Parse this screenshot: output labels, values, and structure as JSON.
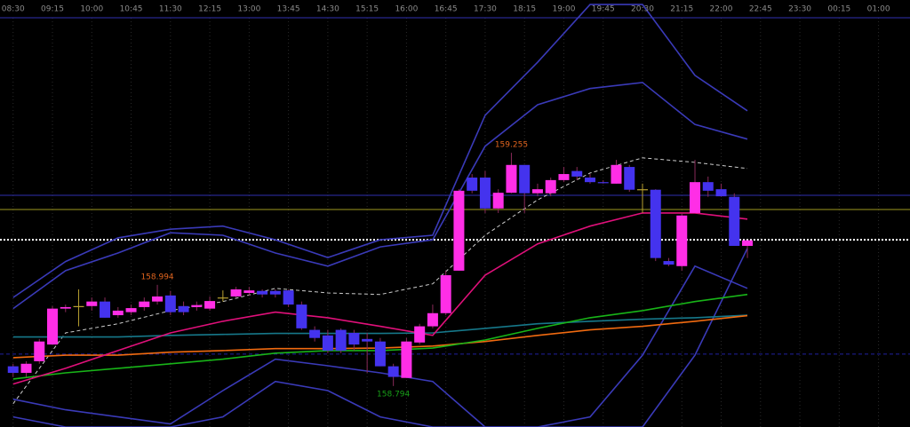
{
  "chart_data": {
    "type": "candlestick",
    "xlim": [
      -1,
      68.4
    ],
    "ylim": [
      158.713,
      159.557
    ],
    "grid": true,
    "up_color": "#ff2ee6",
    "down_color": "#4433ee",
    "doji_color": "#b8a030",
    "xticks": [
      {
        "value": 0,
        "label": "08:30"
      },
      {
        "value": 3,
        "label": "09:15"
      },
      {
        "value": 6,
        "label": "10:00"
      },
      {
        "value": 9,
        "label": "10:45"
      },
      {
        "value": 12,
        "label": "11:30"
      },
      {
        "value": 15,
        "label": "12:15"
      },
      {
        "value": 18,
        "label": "13:00"
      },
      {
        "value": 21,
        "label": "13:45"
      },
      {
        "value": 24,
        "label": "14:30"
      },
      {
        "value": 27,
        "label": "15:15"
      },
      {
        "value": 30,
        "label": "16:00"
      },
      {
        "value": 33,
        "label": "16:45"
      },
      {
        "value": 36,
        "label": "17:30"
      },
      {
        "value": 39,
        "label": "18:15"
      },
      {
        "value": 42,
        "label": "19:00"
      },
      {
        "value": 45,
        "label": "19:45"
      },
      {
        "value": 48,
        "label": "20:30"
      },
      {
        "value": 51,
        "label": "21:15"
      },
      {
        "value": 54,
        "label": "22:00"
      },
      {
        "value": 57,
        "label": "22:45"
      },
      {
        "value": 60,
        "label": "23:30"
      },
      {
        "value": 63,
        "label": "00:15"
      },
      {
        "value": 66,
        "label": "01:00"
      }
    ],
    "x": [
      0,
      1,
      2,
      3,
      4,
      5,
      6,
      7,
      8,
      9,
      10,
      11,
      12,
      13,
      14,
      15,
      16,
      17,
      18,
      19,
      20,
      21,
      22,
      23,
      24,
      25,
      26,
      27,
      28,
      29,
      30,
      31,
      32,
      33,
      34,
      35,
      36,
      37,
      38,
      39,
      40,
      41,
      42,
      43,
      44,
      45,
      46,
      47,
      48,
      49,
      50,
      51,
      52,
      53,
      54,
      55,
      56
    ],
    "open": [
      158.833,
      158.82,
      158.843,
      158.876,
      158.947,
      158.952,
      158.952,
      158.961,
      158.934,
      158.94,
      158.95,
      158.961,
      158.973,
      158.952,
      158.95,
      158.947,
      158.969,
      158.971,
      158.978,
      158.982,
      158.982,
      158.983,
      158.955,
      158.905,
      158.894,
      158.905,
      158.899,
      158.887,
      158.882,
      158.833,
      158.81,
      158.88,
      158.912,
      158.938,
      159.022,
      159.206,
      159.206,
      159.145,
      159.176,
      159.231,
      159.175,
      159.175,
      159.201,
      159.219,
      159.206,
      159.197,
      159.194,
      159.227,
      159.183,
      159.182,
      159.041,
      159.031,
      159.136,
      159.197,
      159.183,
      159.168,
      159.071
    ],
    "high": [
      158.838,
      158.843,
      158.887,
      158.952,
      158.955,
      158.985,
      158.969,
      158.969,
      158.95,
      158.955,
      158.969,
      158.994,
      158.982,
      158.961,
      158.961,
      158.971,
      158.983,
      158.99,
      158.99,
      158.985,
      158.985,
      158.985,
      158.961,
      158.912,
      158.905,
      158.908,
      158.905,
      158.899,
      158.889,
      158.838,
      158.889,
      158.917,
      158.955,
      159.022,
      159.183,
      159.213,
      159.219,
      159.183,
      159.255,
      159.231,
      159.194,
      159.206,
      159.227,
      159.227,
      159.213,
      159.201,
      159.241,
      159.231,
      159.194,
      159.183,
      159.047,
      159.136,
      159.241,
      159.208,
      159.194,
      159.175,
      159.082
    ],
    "low": [
      158.812,
      158.812,
      158.838,
      158.876,
      158.94,
      158.912,
      158.943,
      158.929,
      158.929,
      158.934,
      158.943,
      158.955,
      158.934,
      158.934,
      158.943,
      158.943,
      158.961,
      158.969,
      158.973,
      158.969,
      158.969,
      158.95,
      158.905,
      158.882,
      158.859,
      158.859,
      158.864,
      158.82,
      158.833,
      158.794,
      158.81,
      158.876,
      158.908,
      158.934,
      159.022,
      159.175,
      159.136,
      159.136,
      159.175,
      159.136,
      159.169,
      159.169,
      159.197,
      159.201,
      159.194,
      159.194,
      159.194,
      159.178,
      159.136,
      159.041,
      159.031,
      159.022,
      159.136,
      159.168,
      159.168,
      159.071,
      159.047
    ],
    "close": [
      158.82,
      158.838,
      158.882,
      158.947,
      158.95,
      158.952,
      158.961,
      158.929,
      158.943,
      158.948,
      158.961,
      158.971,
      158.94,
      158.94,
      158.954,
      158.962,
      158.969,
      158.985,
      158.983,
      158.975,
      158.975,
      158.955,
      158.908,
      158.889,
      158.864,
      158.864,
      158.876,
      158.882,
      158.833,
      158.812,
      158.882,
      158.912,
      158.938,
      159.013,
      159.18,
      159.18,
      159.145,
      159.176,
      159.231,
      159.175,
      159.183,
      159.201,
      159.213,
      159.208,
      159.197,
      159.196,
      159.231,
      159.182,
      159.183,
      159.047,
      159.034,
      159.131,
      159.197,
      159.18,
      159.169,
      159.071,
      159.082
    ],
    "levels": [
      {
        "value": 159.522,
        "color": "#3030b0",
        "style": "solid"
      },
      {
        "value": 159.171,
        "color": "#3030b0",
        "style": "solid"
      },
      {
        "value": 159.143,
        "color": "#a09a20",
        "style": "solid"
      },
      {
        "value": 159.083,
        "color": "#ffffff",
        "style": "dotted"
      },
      {
        "value": 158.857,
        "color": "#2020a0",
        "style": "dashed"
      }
    ],
    "overlay_x": [
      0,
      4,
      8,
      12,
      16,
      20,
      24,
      28,
      32,
      36,
      40,
      44,
      48,
      52,
      56
    ],
    "overlays": [
      {
        "color": "#3a3ab8",
        "style": "solid",
        "values": [
          158.969,
          159.04,
          159.087,
          159.104,
          159.11,
          159.083,
          159.048,
          159.083,
          159.092,
          159.329,
          159.434,
          159.548,
          159.548,
          159.408,
          159.338
        ]
      },
      {
        "color": "#3a3ab8",
        "style": "solid",
        "values": [
          158.947,
          159.022,
          159.057,
          159.097,
          159.092,
          159.057,
          159.031,
          159.069,
          159.083,
          159.268,
          159.35,
          159.382,
          159.394,
          159.311,
          159.282
        ]
      },
      {
        "color": "#3a3ab8",
        "style": "solid",
        "values": [
          158.768,
          158.747,
          158.733,
          158.719,
          158.785,
          158.847,
          158.834,
          158.82,
          158.803,
          158.713,
          158.713,
          158.733,
          158.855,
          159.031,
          158.987
        ]
      },
      {
        "color": "#3a3ab8",
        "style": "solid",
        "values": [
          158.733,
          158.713,
          158.713,
          158.713,
          158.733,
          158.803,
          158.785,
          158.733,
          158.713,
          158.713,
          158.713,
          158.713,
          158.713,
          158.855,
          159.066
        ]
      },
      {
        "color": "#cccccc",
        "style": "dashed",
        "values": [
          158.759,
          158.899,
          158.917,
          158.943,
          158.961,
          158.987,
          158.978,
          158.975,
          158.996,
          159.092,
          159.162,
          159.215,
          159.245,
          159.236,
          159.224
        ]
      },
      {
        "color": "#16788a",
        "style": "solid",
        "values": [
          158.891,
          158.891,
          158.891,
          158.894,
          158.896,
          158.898,
          158.898,
          158.898,
          158.899,
          158.908,
          158.917,
          158.922,
          158.926,
          158.929,
          158.934
        ]
      },
      {
        "color": "#f06a10",
        "style": "solid",
        "values": [
          158.85,
          158.855,
          158.855,
          158.861,
          158.864,
          158.868,
          158.868,
          158.869,
          158.873,
          158.882,
          158.894,
          158.905,
          158.912,
          158.922,
          158.933
        ]
      },
      {
        "color": "#18b418",
        "style": "solid",
        "values": [
          158.808,
          158.82,
          158.829,
          158.838,
          158.847,
          158.859,
          158.864,
          158.864,
          158.869,
          158.885,
          158.908,
          158.929,
          158.943,
          158.961,
          158.975
        ]
      },
      {
        "color": "#e0107a",
        "style": "solid",
        "values": [
          158.798,
          158.829,
          158.864,
          158.899,
          158.922,
          158.94,
          158.929,
          158.912,
          158.894,
          159.013,
          159.075,
          159.11,
          159.136,
          159.136,
          159.124
        ]
      }
    ],
    "annotations": [
      {
        "label": "159.255",
        "value": 159.255,
        "x": 38,
        "position": "above",
        "color": "#e0641e"
      },
      {
        "label": "158.994",
        "value": 158.994,
        "x": 11,
        "position": "above",
        "color": "#e0641e"
      },
      {
        "label": "158.794",
        "value": 158.794,
        "x": 29,
        "position": "below",
        "color": "#18a018"
      }
    ]
  }
}
